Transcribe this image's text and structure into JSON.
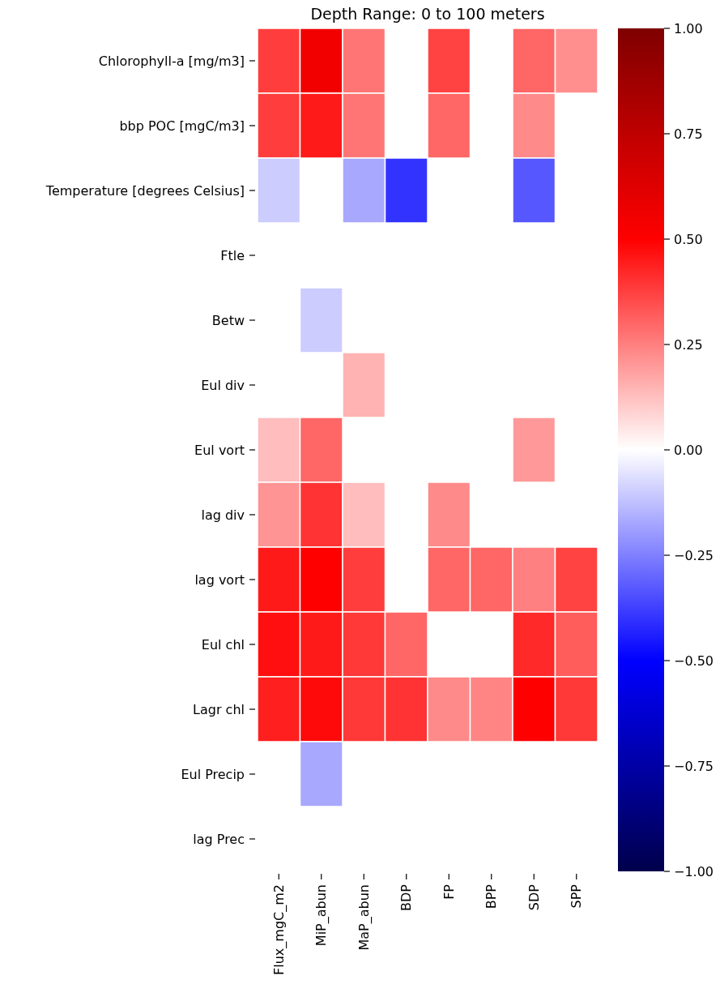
{
  "chart_data": {
    "type": "heatmap",
    "title": "Depth Range: 0 to 100 meters",
    "categories": [
      "Flux_mgC_m2",
      "MiP_abun",
      "MaP_abun",
      "BDP",
      "FP",
      "BPP",
      "SDP",
      "SPP"
    ],
    "y_categories": [
      "Chlorophyll-a [mg/m3]",
      "bbp POC [mgC/m3]",
      "Temperature [degrees Celsius]",
      "Ftle",
      "Betw",
      "Eul div",
      "Eul vort",
      "lag div",
      "lag vort",
      "Eul chl",
      "Lagr chl",
      "Eul Precip",
      "lag Prec"
    ],
    "cells": [
      [
        0.38,
        0.55,
        0.27,
        null,
        0.37,
        null,
        0.3,
        0.22
      ],
      [
        0.38,
        0.45,
        0.27,
        null,
        0.3,
        null,
        0.23,
        null
      ],
      [
        -0.1,
        null,
        -0.17,
        -0.4,
        null,
        null,
        -0.33,
        null
      ],
      [
        null,
        null,
        null,
        null,
        null,
        null,
        null,
        null
      ],
      [
        null,
        -0.1,
        null,
        null,
        null,
        null,
        null,
        null
      ],
      [
        null,
        null,
        0.15,
        null,
        null,
        null,
        null,
        null
      ],
      [
        0.13,
        0.3,
        null,
        null,
        null,
        null,
        0.2,
        null
      ],
      [
        0.21,
        0.4,
        0.13,
        null,
        0.23,
        null,
        null,
        null
      ],
      [
        0.45,
        0.5,
        0.38,
        null,
        0.3,
        0.3,
        0.25,
        0.37
      ],
      [
        0.47,
        0.45,
        0.39,
        0.3,
        null,
        null,
        0.42,
        0.32
      ],
      [
        0.44,
        0.48,
        0.39,
        0.4,
        0.23,
        0.24,
        0.5,
        0.39
      ],
      [
        null,
        -0.17,
        null,
        null,
        null,
        null,
        null,
        null
      ],
      [
        null,
        null,
        null,
        null,
        null,
        null,
        null,
        null
      ]
    ],
    "clim": [
      -1,
      1
    ],
    "cticks": [
      {
        "value": -1,
        "label": "−1.00"
      },
      {
        "value": -0.75,
        "label": "−0.75"
      },
      {
        "value": -0.5,
        "label": "−0.50"
      },
      {
        "value": -0.25,
        "label": "−0.25"
      },
      {
        "value": 0,
        "label": "0.00"
      },
      {
        "value": 0.25,
        "label": "0.25"
      },
      {
        "value": 0.5,
        "label": "0.50"
      },
      {
        "value": 0.75,
        "label": "0.75"
      },
      {
        "value": 1,
        "label": "1.00"
      }
    ]
  }
}
